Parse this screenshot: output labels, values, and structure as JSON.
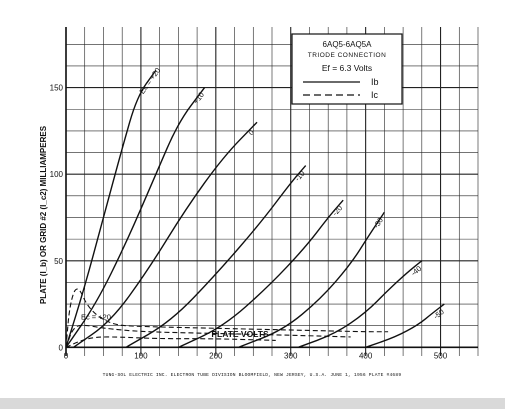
{
  "chart_data": {
    "type": "line",
    "xlabel": "PLATE VOLTS",
    "ylabel": "PLATE (I_b) OR GRID #2 (I_c2) MILLIAMPERES",
    "xlim": [
      0,
      550
    ],
    "ylim": [
      -5,
      185
    ],
    "x_ticks": [
      0,
      100,
      200,
      300,
      400,
      500
    ],
    "y_ticks": [
      0,
      50,
      100,
      150
    ],
    "grid": true,
    "legend": {
      "position": "top-right",
      "title": "6AQ5-6AQ5A",
      "subtitle": "TRIODE CONNECTION",
      "heater": "Ef = 6.3 Volts",
      "entries": [
        {
          "label": "Ib",
          "style": "solid"
        },
        {
          "label": "Ic",
          "style": "dashed"
        }
      ]
    },
    "series": [
      {
        "name": "Ec = +20",
        "kind": "Ib",
        "style": "solid",
        "x": [
          0,
          25,
          50,
          75,
          95,
          120
        ],
        "y": [
          0,
          35,
          75,
          115,
          145,
          160
        ]
      },
      {
        "name": "+10",
        "kind": "Ib",
        "style": "solid",
        "x": [
          0,
          40,
          80,
          120,
          150,
          185
        ],
        "y": [
          0,
          25,
          60,
          100,
          130,
          150
        ]
      },
      {
        "name": "0",
        "kind": "Ib",
        "style": "solid",
        "x": [
          10,
          60,
          110,
          160,
          210,
          255
        ],
        "y": [
          0,
          15,
          45,
          80,
          110,
          130
        ]
      },
      {
        "name": "-10",
        "kind": "Ib",
        "style": "solid",
        "x": [
          80,
          140,
          200,
          260,
          300,
          320
        ],
        "y": [
          0,
          15,
          42,
          72,
          95,
          105
        ]
      },
      {
        "name": "-20",
        "kind": "Ib",
        "style": "solid",
        "x": [
          150,
          210,
          270,
          320,
          350,
          370
        ],
        "y": [
          0,
          12,
          35,
          58,
          75,
          85
        ]
      },
      {
        "name": "-30",
        "kind": "Ib",
        "style": "solid",
        "x": [
          230,
          290,
          340,
          380,
          405,
          425
        ],
        "y": [
          0,
          10,
          28,
          48,
          65,
          78
        ]
      },
      {
        "name": "-40",
        "kind": "Ib",
        "style": "solid",
        "x": [
          310,
          360,
          400,
          430,
          455,
          475
        ],
        "y": [
          0,
          8,
          20,
          33,
          43,
          50
        ]
      },
      {
        "name": "-50",
        "kind": "Ib",
        "style": "solid",
        "x": [
          400,
          440,
          470,
          490,
          505
        ],
        "y": [
          0,
          6,
          13,
          20,
          25
        ]
      },
      {
        "name": "Ec = +20",
        "kind": "Ic",
        "style": "dashed",
        "x": [
          0,
          5,
          15,
          30,
          60,
          100,
          200,
          300,
          400,
          430
        ],
        "y": [
          0,
          25,
          37,
          22,
          13,
          12,
          11,
          10,
          9,
          9
        ]
      },
      {
        "name": "",
        "kind": "Ic",
        "style": "dashed",
        "x": [
          0,
          10,
          25,
          50,
          100,
          200,
          300,
          380
        ],
        "y": [
          0,
          12,
          13,
          11,
          9,
          8,
          7,
          6
        ]
      },
      {
        "name": "",
        "kind": "Ic",
        "style": "dashed",
        "x": [
          0,
          20,
          40,
          70,
          120,
          200,
          280
        ],
        "y": [
          0,
          4,
          6,
          6,
          5,
          5,
          4
        ]
      }
    ],
    "annotations": [
      {
        "text": "Ec = +20",
        "near_series": 0
      },
      {
        "text": "+10",
        "near_series": 1
      },
      {
        "text": "0",
        "near_series": 2
      },
      {
        "text": "-10",
        "near_series": 3
      },
      {
        "text": "-20",
        "near_series": 4
      },
      {
        "text": "-30",
        "near_series": 5
      },
      {
        "text": "-40",
        "near_series": 6
      },
      {
        "text": "-50",
        "near_series": 7
      },
      {
        "text": "Ec = +20",
        "near_series": 8
      }
    ]
  },
  "footer": "TUNG-SOL ELECTRIC INC.  ELECTRON TUBE DIVISION  BLOOMFIELD, NEW JERSEY, U.S.A.  JUNE 1, 1956  PLATE #4689",
  "colors": {
    "ink": "#111111",
    "grid": "#222222",
    "band": "#d9d9d9"
  }
}
